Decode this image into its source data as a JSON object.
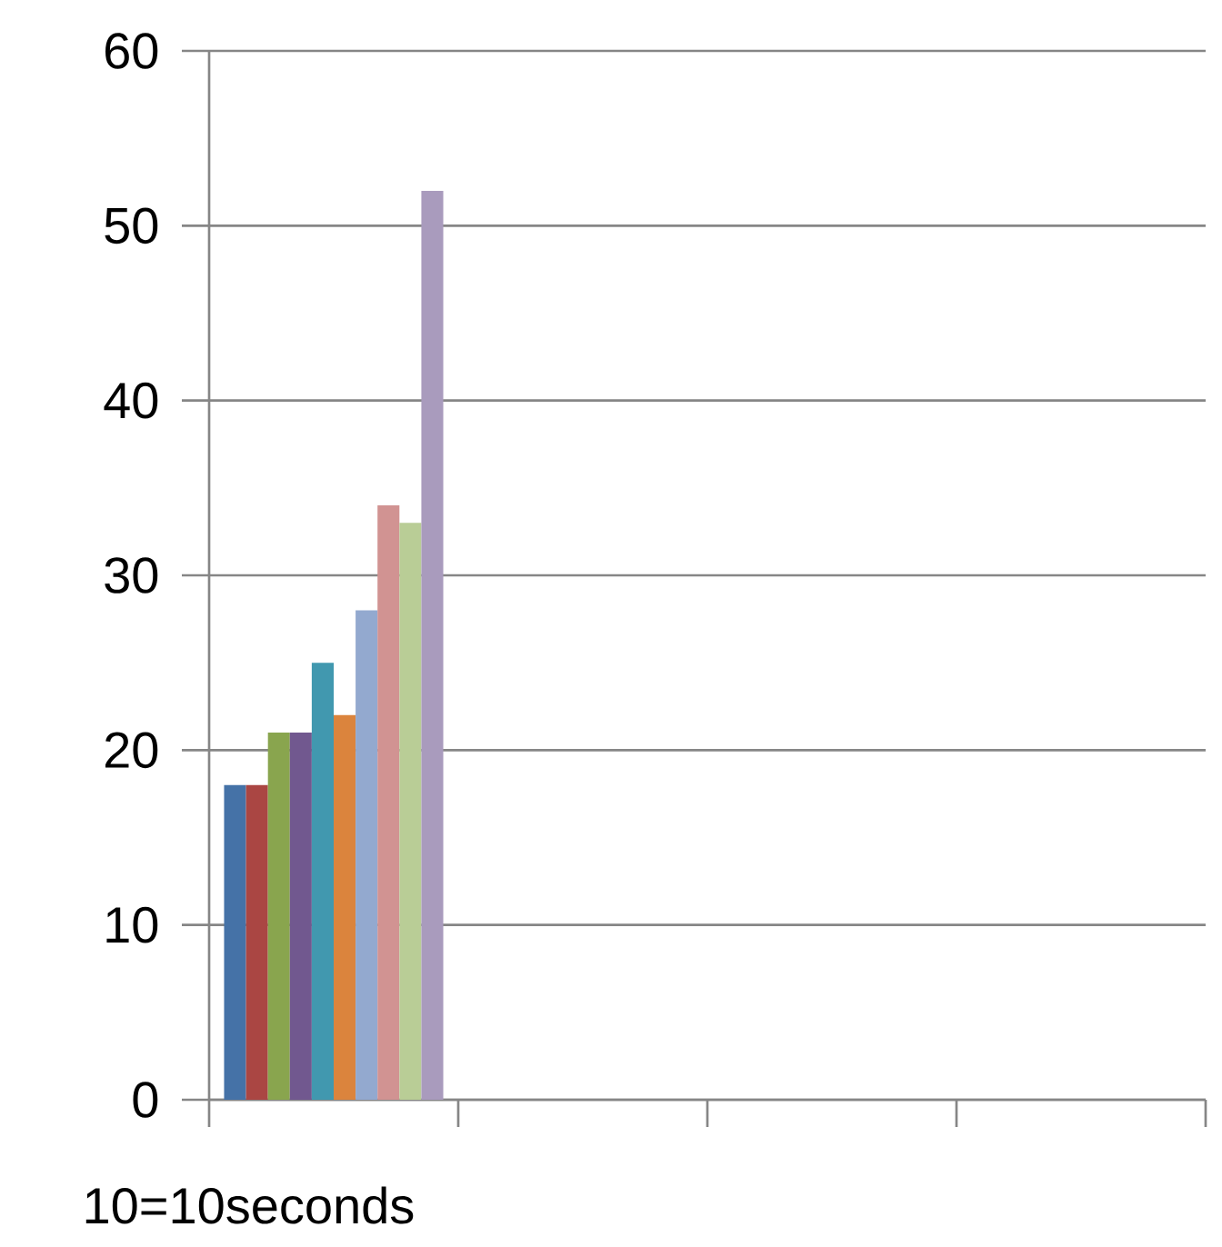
{
  "chart_data": {
    "type": "bar",
    "categories": [
      null,
      null,
      null,
      null
    ],
    "series": [
      {
        "color": "#4572a7",
        "values": [
          18,
          null,
          null,
          null
        ]
      },
      {
        "color": "#aa4643",
        "values": [
          18,
          null,
          null,
          null
        ]
      },
      {
        "color": "#89a54e",
        "values": [
          21,
          null,
          null,
          null
        ]
      },
      {
        "color": "#71588f",
        "values": [
          21,
          null,
          null,
          null
        ]
      },
      {
        "color": "#4198af",
        "values": [
          25,
          null,
          null,
          null
        ]
      },
      {
        "color": "#db843d",
        "values": [
          22,
          null,
          null,
          null
        ]
      },
      {
        "color": "#93a9cf",
        "values": [
          28,
          null,
          null,
          null
        ]
      },
      {
        "color": "#d19392",
        "values": [
          34,
          null,
          null,
          null
        ]
      },
      {
        "color": "#b9cd96",
        "values": [
          33,
          null,
          null,
          null
        ]
      },
      {
        "color": "#a99bbd",
        "values": [
          52,
          null,
          null,
          null
        ]
      }
    ],
    "ylim": [
      0,
      60
    ],
    "yticks": [
      0,
      10,
      20,
      30,
      40,
      50,
      60
    ],
    "grid": "y",
    "annotations": [
      "10=10seconds"
    ]
  }
}
